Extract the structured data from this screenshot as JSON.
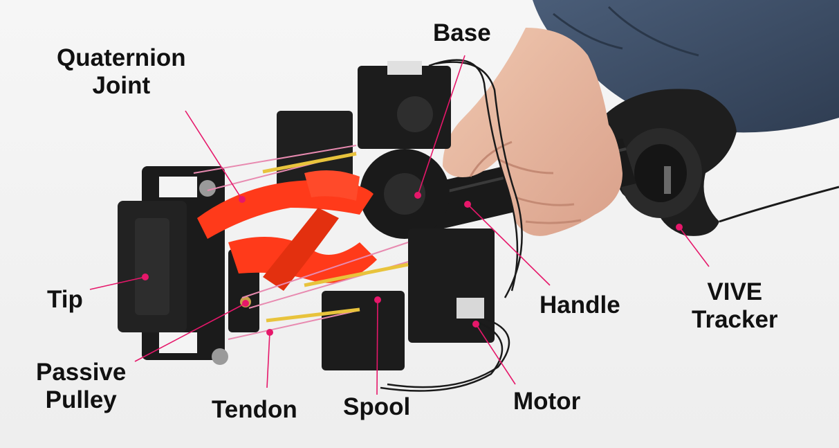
{
  "labels": {
    "base": "Base",
    "quaternion_joint": [
      "Quaternion",
      "Joint"
    ],
    "tip": "Tip",
    "passive_pulley": [
      "Passive",
      "Pulley"
    ],
    "tendon": "Tendon",
    "spool": "Spool",
    "motor": "Motor",
    "handle": "Handle",
    "vive_tracker": [
      "VIVE",
      "Tracker"
    ]
  },
  "colors": {
    "background": "#f4f4f4",
    "annotation": "#e6176a",
    "robot_arm": "#ff3a1a",
    "robot_frame": "#1c1c1c",
    "sleeve": "#3d4f66",
    "skin": "#e7b89f",
    "tendon": "#e8c33c",
    "label_text": "#111111"
  }
}
